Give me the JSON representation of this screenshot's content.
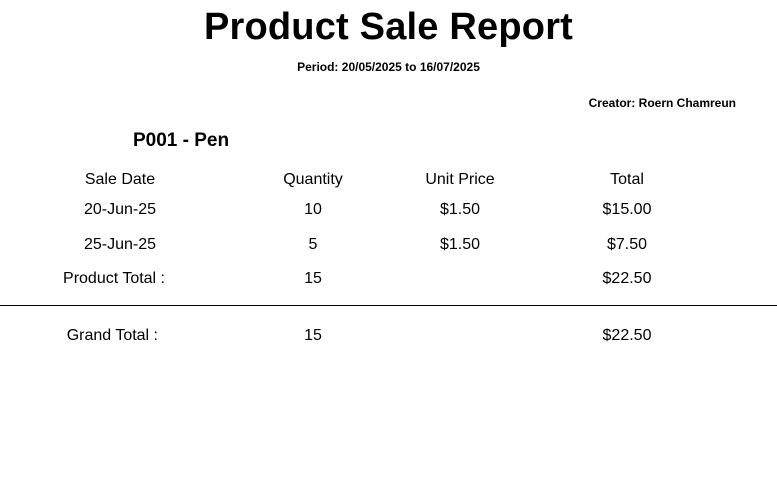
{
  "report": {
    "title": "Product Sale Report",
    "period": "Period: 20/05/2025 to 16/07/2025",
    "creator": "Creator: Roern Chamreun"
  },
  "product": {
    "heading": "P001  - Pen",
    "columns": {
      "sale_date": "Sale Date",
      "quantity": "Quantity",
      "unit_price": "Unit Price",
      "total": "Total"
    },
    "rows": [
      {
        "sale_date": "20-Jun-25",
        "quantity": "10",
        "unit_price": "$1.50",
        "total": "$15.00"
      },
      {
        "sale_date": "25-Jun-25",
        "quantity": "5",
        "unit_price": "$1.50",
        "total": "$7.50"
      }
    ],
    "product_total": {
      "label": "Product Total :",
      "quantity": "15",
      "total": "$22.50"
    }
  },
  "grand_total": {
    "label": "Grand Total :",
    "quantity": "15",
    "total": "$22.50"
  }
}
